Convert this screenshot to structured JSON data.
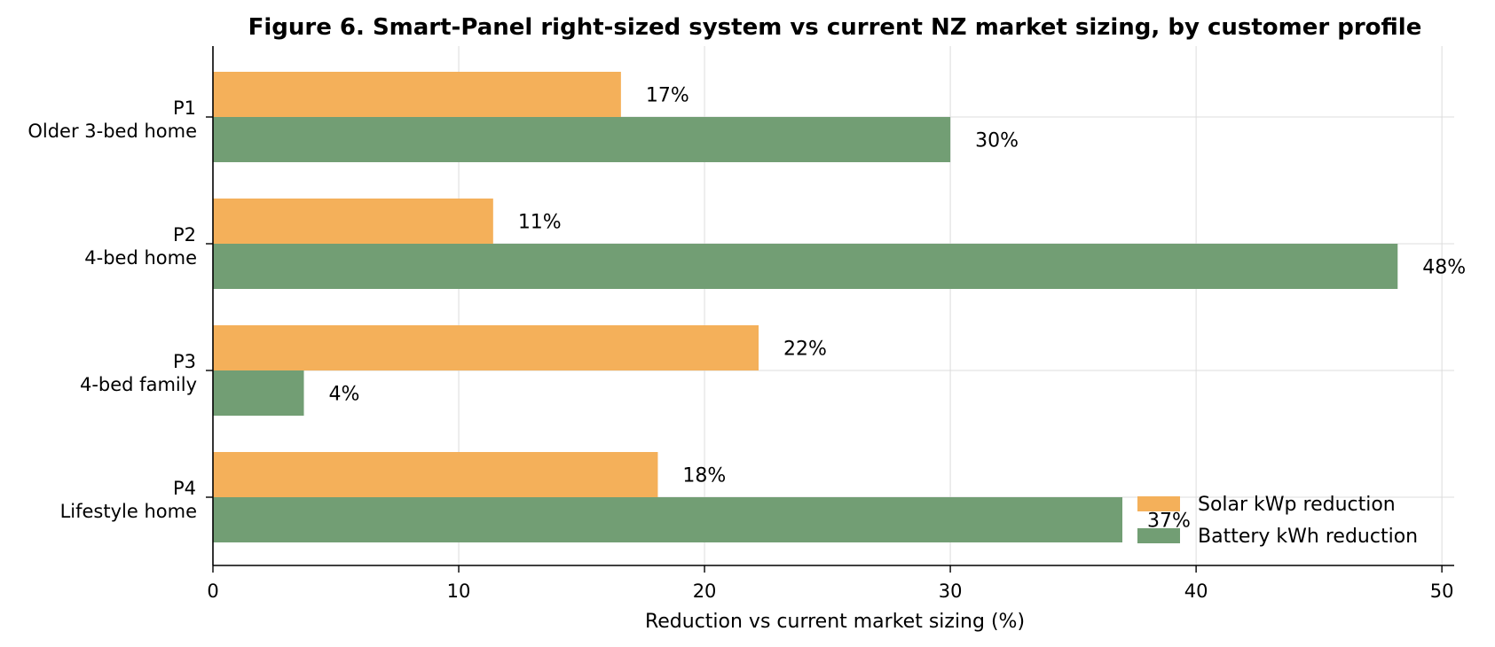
{
  "chart_data": {
    "type": "bar",
    "orientation": "horizontal",
    "title": "Figure 6. Smart-Panel right-sized system vs current NZ market sizing, by customer profile",
    "xlabel": "Reduction vs current market sizing (%)",
    "ylabel": "",
    "xlim": [
      0,
      50.5
    ],
    "xticks": [
      "0",
      "10",
      "20",
      "30",
      "40",
      "50"
    ],
    "grid": true,
    "legend_position": "bottom-right",
    "categories": [
      {
        "code": "P1",
        "name": "Older 3-bed home"
      },
      {
        "code": "P2",
        "name": "4-bed home"
      },
      {
        "code": "P3",
        "name": "4-bed family"
      },
      {
        "code": "P4",
        "name": "Lifestyle home"
      }
    ],
    "series": [
      {
        "name": "Solar kWp reduction",
        "color": "#F4B05A",
        "values": [
          16.6,
          11.4,
          22.2,
          18.1
        ],
        "labels": [
          "17%",
          "11%",
          "22%",
          "18%"
        ]
      },
      {
        "name": "Battery kWh reduction",
        "color": "#729E74",
        "values": [
          30.0,
          48.2,
          3.7,
          37.0
        ],
        "labels": [
          "30%",
          "48%",
          "4%",
          "37%"
        ]
      }
    ]
  }
}
